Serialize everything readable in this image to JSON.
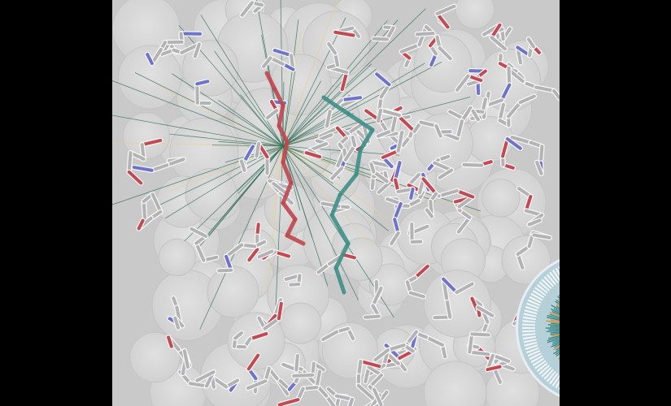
{
  "scene": {
    "background_color": "#000000",
    "viewport_color": "#c9c9c9",
    "surface_color": "#d8d8d8",
    "colors": {
      "carbon": "#b3b3b6",
      "oxygen": "#c24a52",
      "nitrogen": "#6f73c9",
      "ligand_red": "#c0474f",
      "ligand_teal": "#3f8f88",
      "contact_lines": "#2d6c55",
      "highlight_yellow": "#e6d08a"
    },
    "inset": {
      "background_color": "#b6d0da",
      "ring_color": "#f4f6f6",
      "core_color": "#2f7f7a",
      "accent_orange": "#d98a2a",
      "accent_red": "#c12a2a"
    }
  }
}
